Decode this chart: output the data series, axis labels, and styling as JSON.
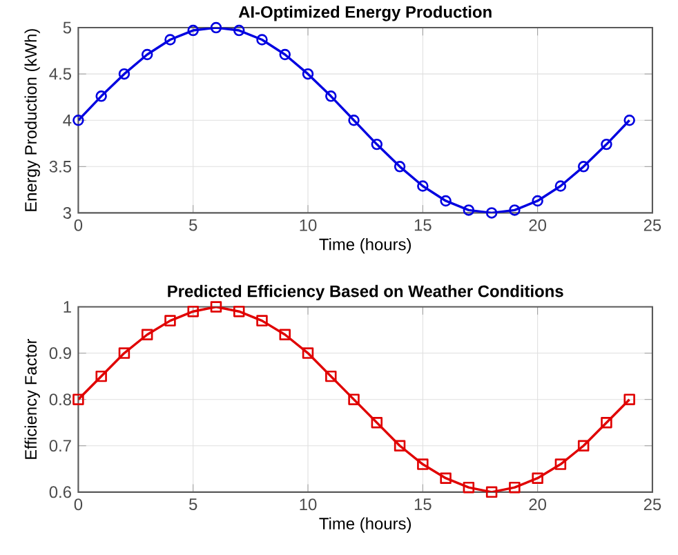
{
  "chart_data": [
    {
      "type": "line",
      "title": "AI-Optimized Energy Production",
      "xlabel": "Time (hours)",
      "ylabel": "Energy Production (kWh)",
      "x": [
        0,
        1,
        2,
        3,
        4,
        5,
        6,
        7,
        8,
        9,
        10,
        11,
        12,
        13,
        14,
        15,
        16,
        17,
        18,
        19,
        20,
        21,
        22,
        23,
        24
      ],
      "series": [
        {
          "color": "#0000e0",
          "values": [
            4,
            4.26,
            4.5,
            4.71,
            4.87,
            4.97,
            5,
            4.97,
            4.87,
            4.71,
            4.5,
            4.26,
            4,
            3.74,
            3.5,
            3.29,
            3.13,
            3.03,
            3,
            3.03,
            3.13,
            3.29,
            3.5,
            3.74,
            4
          ]
        }
      ],
      "xlim": [
        0,
        25
      ],
      "ylim": [
        3,
        5
      ],
      "xticks": [
        0,
        5,
        10,
        15,
        20,
        25
      ],
      "yticks": [
        3,
        3.5,
        4,
        4.5,
        5
      ],
      "grid": true,
      "marker": "circle",
      "line_style": "solid"
    },
    {
      "type": "line",
      "title": "Predicted Efficiency Based on Weather Conditions",
      "xlabel": "Time (hours)",
      "ylabel": "Efficiency Factor",
      "x": [
        0,
        1,
        2,
        3,
        4,
        5,
        6,
        7,
        8,
        9,
        10,
        11,
        12,
        13,
        14,
        15,
        16,
        17,
        18,
        19,
        20,
        21,
        22,
        23,
        24
      ],
      "series": [
        {
          "color": "#e00000",
          "values": [
            0.8,
            0.85,
            0.9,
            0.94,
            0.97,
            0.99,
            1,
            0.99,
            0.97,
            0.94,
            0.9,
            0.85,
            0.8,
            0.75,
            0.7,
            0.66,
            0.63,
            0.61,
            0.6,
            0.61,
            0.63,
            0.66,
            0.7,
            0.75,
            0.8
          ]
        }
      ],
      "xlim": [
        0,
        25
      ],
      "ylim": [
        0.6,
        1
      ],
      "xticks": [
        0,
        5,
        10,
        15,
        20,
        25
      ],
      "yticks": [
        0.6,
        0.7,
        0.8,
        0.9,
        1
      ],
      "grid": true,
      "marker": "square",
      "line_style": "solid"
    }
  ]
}
